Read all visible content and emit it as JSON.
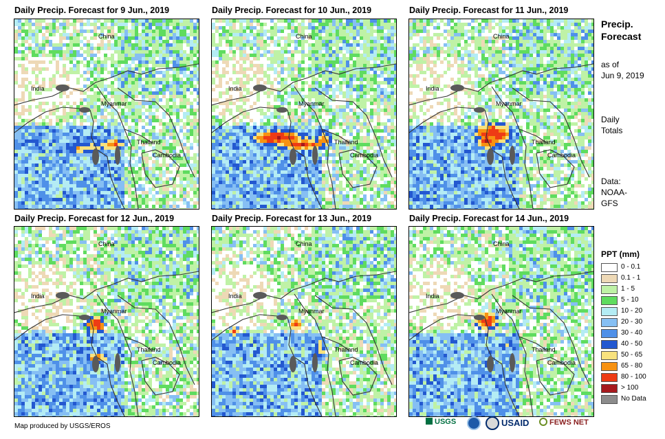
{
  "panels": [
    {
      "title": "Daily Precip. Forecast for 9 Jun., 2019"
    },
    {
      "title": "Daily Precip. Forecast for 10 Jun., 2019"
    },
    {
      "title": "Daily Precip. Forecast for 11 Jun., 2019"
    },
    {
      "title": "Daily Precip. Forecast for 12 Jun., 2019"
    },
    {
      "title": "Daily Precip. Forecast for 13 Jun., 2019"
    },
    {
      "title": "Daily Precip. Forecast for 14 Jun., 2019"
    }
  ],
  "map_labels": {
    "china": "China",
    "india": "India",
    "myanmar": "Myanmar",
    "thailand": "Thailand",
    "cambodia": "Cambodia"
  },
  "sidebar": {
    "title1": "Precip.",
    "title2": "Forecast",
    "asof1": "as of",
    "asof2": "Jun 9, 2019",
    "daily1": "Daily",
    "daily2": "Totals",
    "data1": "Data:",
    "data2": "NOAA-",
    "data3": "GFS"
  },
  "legend": {
    "title": "PPT (mm)",
    "items": [
      {
        "label": "0 - 0.1",
        "color": "#ffffff"
      },
      {
        "label": "0.1 - 1",
        "color": "#eed9b6"
      },
      {
        "label": "1 - 5",
        "color": "#bff2a6"
      },
      {
        "label": "5 - 10",
        "color": "#5fdc5f"
      },
      {
        "label": "10 - 20",
        "color": "#b4ecf4"
      },
      {
        "label": "20 - 30",
        "color": "#86bff3"
      },
      {
        "label": "30 - 40",
        "color": "#4f90e8"
      },
      {
        "label": "40 - 50",
        "color": "#2358d0"
      },
      {
        "label": "50 - 65",
        "color": "#f8e27e"
      },
      {
        "label": "65 - 80",
        "color": "#f79212"
      },
      {
        "label": "80 - 100",
        "color": "#ee3b15"
      },
      {
        "label": "> 100",
        "color": "#a6191d"
      },
      {
        "label": "No Data",
        "color": "#8c8c8c"
      }
    ]
  },
  "credit": "Map produced by USGS/EROS",
  "logos": {
    "usgs": "USGS",
    "usaid": "USAID",
    "fewsnet": "FEWS NET"
  }
}
